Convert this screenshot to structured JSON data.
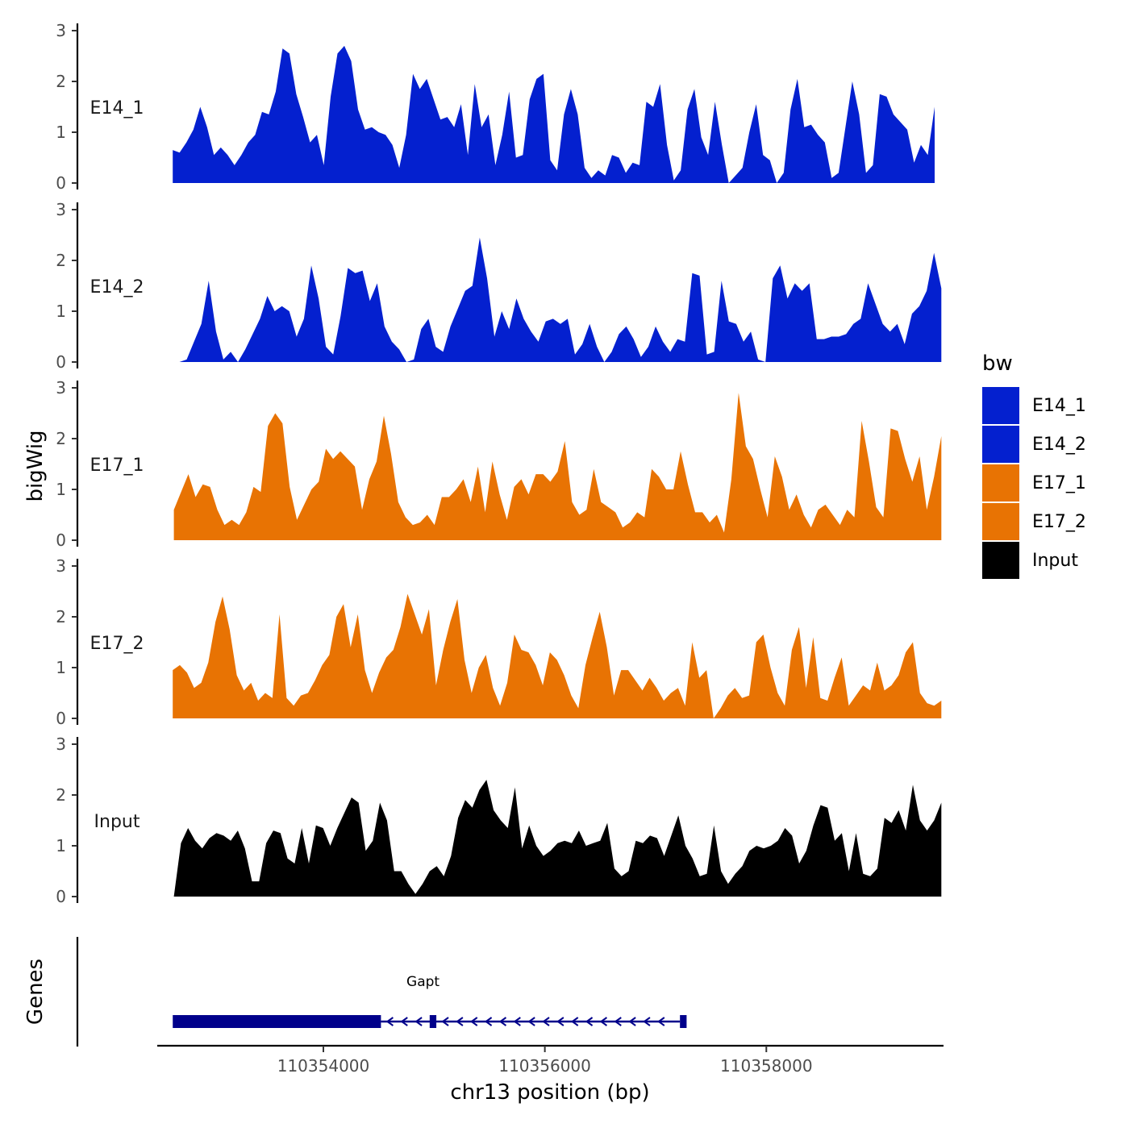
{
  "chart_data": {
    "type": "area",
    "ylabel": "bigWig",
    "xlabel": "chr13 position (bp)",
    "genes_label": "Genes",
    "x_range": [
      110352500,
      110359600
    ],
    "ylim": [
      0,
      3
    ],
    "yticks": [
      0,
      1,
      2,
      3
    ],
    "xticks": [
      110354000,
      110356000,
      110358000
    ],
    "xtick_labels": [
      "110354000",
      "110356000",
      "110358000"
    ],
    "legend": {
      "title": "bw",
      "position": "right",
      "entries": [
        {
          "label": "E14_1",
          "color": "#0420CF"
        },
        {
          "label": "E14_2",
          "color": "#0420CF"
        },
        {
          "label": "E17_1",
          "color": "#E87303"
        },
        {
          "label": "E17_2",
          "color": "#E87303"
        },
        {
          "label": "Input",
          "color": "#000000"
        }
      ]
    },
    "tracks": [
      {
        "name": "E14_1",
        "label": "E14_1",
        "color": "#0420CF",
        "x_start": 110352640,
        "x_end": 110359520,
        "values": [
          0.65,
          0.6,
          0.8,
          1.05,
          1.5,
          1.1,
          0.55,
          0.7,
          0.55,
          0.35,
          0.55,
          0.8,
          0.95,
          1.4,
          1.35,
          1.8,
          2.65,
          2.55,
          1.75,
          1.3,
          0.8,
          0.95,
          0.35,
          1.7,
          2.55,
          2.7,
          2.4,
          1.45,
          1.05,
          1.1,
          1.0,
          0.95,
          0.75,
          0.3,
          0.95,
          2.15,
          1.85,
          2.05,
          1.65,
          1.25,
          1.3,
          1.1,
          1.55,
          0.55,
          1.95,
          1.1,
          1.35,
          0.35,
          0.95,
          1.8,
          0.5,
          0.55,
          1.65,
          2.05,
          2.15,
          0.45,
          0.25,
          1.35,
          1.85,
          1.35,
          0.3,
          0.1,
          0.25,
          0.15,
          0.55,
          0.5,
          0.2,
          0.4,
          0.35,
          1.6,
          1.5,
          1.95,
          0.75,
          0.05,
          0.25,
          1.45,
          1.85,
          0.9,
          0.55,
          1.6,
          0.75,
          0.0,
          0.15,
          0.3,
          1.0,
          1.55,
          0.55,
          0.45,
          0.0,
          0.2,
          1.45,
          2.05,
          1.1,
          1.15,
          0.95,
          0.8,
          0.1,
          0.2,
          1.1,
          2.0,
          1.35,
          0.2,
          0.35,
          1.75,
          1.7,
          1.35,
          1.2,
          1.05,
          0.4,
          0.75,
          0.55,
          1.5
        ]
      },
      {
        "name": "E14_2",
        "label": "E14_2",
        "color": "#0420CF",
        "x_start": 110352700,
        "x_end": 110359580,
        "values": [
          0.0,
          0.05,
          0.4,
          0.75,
          1.6,
          0.6,
          0.05,
          0.2,
          0.0,
          0.25,
          0.55,
          0.85,
          1.3,
          1.0,
          1.1,
          1.0,
          0.5,
          0.85,
          1.9,
          1.25,
          0.3,
          0.15,
          0.9,
          1.85,
          1.75,
          1.8,
          1.2,
          1.55,
          0.7,
          0.4,
          0.25,
          0.0,
          0.05,
          0.65,
          0.85,
          0.3,
          0.2,
          0.7,
          1.05,
          1.4,
          1.5,
          2.45,
          1.65,
          0.5,
          1.0,
          0.65,
          1.25,
          0.85,
          0.6,
          0.4,
          0.8,
          0.85,
          0.75,
          0.85,
          0.15,
          0.35,
          0.75,
          0.3,
          0.0,
          0.2,
          0.55,
          0.7,
          0.45,
          0.1,
          0.3,
          0.7,
          0.4,
          0.2,
          0.45,
          0.4,
          1.75,
          1.7,
          0.15,
          0.2,
          1.6,
          0.8,
          0.75,
          0.4,
          0.6,
          0.05,
          0.0,
          1.65,
          1.9,
          1.25,
          1.55,
          1.4,
          1.55,
          0.45,
          0.45,
          0.5,
          0.5,
          0.55,
          0.75,
          0.85,
          1.55,
          1.15,
          0.75,
          0.6,
          0.75,
          0.35,
          0.95,
          1.1,
          1.4,
          2.15,
          1.45
        ]
      },
      {
        "name": "E17_1",
        "label": "E17_1",
        "color": "#E87303",
        "x_start": 110352650,
        "x_end": 110359580,
        "values": [
          0.6,
          0.95,
          1.3,
          0.85,
          1.1,
          1.05,
          0.6,
          0.3,
          0.4,
          0.3,
          0.55,
          1.05,
          0.95,
          2.25,
          2.5,
          2.3,
          1.05,
          0.4,
          0.7,
          1.0,
          1.15,
          1.8,
          1.6,
          1.75,
          1.6,
          1.45,
          0.6,
          1.2,
          1.55,
          2.45,
          1.7,
          0.75,
          0.45,
          0.3,
          0.35,
          0.5,
          0.3,
          0.85,
          0.85,
          1.0,
          1.2,
          0.75,
          1.45,
          0.55,
          1.55,
          0.9,
          0.4,
          1.05,
          1.2,
          0.9,
          1.3,
          1.3,
          1.15,
          1.35,
          1.95,
          0.75,
          0.5,
          0.6,
          1.4,
          0.75,
          0.65,
          0.55,
          0.25,
          0.35,
          0.55,
          0.45,
          1.4,
          1.25,
          1.0,
          1.0,
          1.75,
          1.1,
          0.55,
          0.55,
          0.35,
          0.5,
          0.15,
          1.2,
          2.9,
          1.85,
          1.6,
          1.0,
          0.45,
          1.65,
          1.25,
          0.6,
          0.9,
          0.5,
          0.25,
          0.6,
          0.7,
          0.5,
          0.3,
          0.6,
          0.45,
          2.35,
          1.55,
          0.65,
          0.45,
          2.2,
          2.15,
          1.6,
          1.15,
          1.65,
          0.6,
          1.25,
          2.05
        ]
      },
      {
        "name": "E17_2",
        "label": "E17_2",
        "color": "#E87303",
        "x_start": 110352640,
        "x_end": 110359580,
        "values": [
          0.95,
          1.05,
          0.9,
          0.6,
          0.7,
          1.1,
          1.9,
          2.4,
          1.75,
          0.85,
          0.55,
          0.7,
          0.35,
          0.5,
          0.4,
          2.05,
          0.4,
          0.25,
          0.45,
          0.5,
          0.75,
          1.05,
          1.25,
          2.0,
          2.25,
          1.4,
          2.05,
          0.95,
          0.5,
          0.9,
          1.2,
          1.35,
          1.8,
          2.45,
          2.05,
          1.65,
          2.15,
          0.65,
          1.35,
          1.9,
          2.35,
          1.15,
          0.5,
          1.0,
          1.25,
          0.6,
          0.25,
          0.7,
          1.65,
          1.35,
          1.3,
          1.05,
          0.65,
          1.3,
          1.15,
          0.85,
          0.45,
          0.2,
          1.05,
          1.6,
          2.1,
          1.4,
          0.45,
          0.95,
          0.95,
          0.75,
          0.55,
          0.8,
          0.6,
          0.35,
          0.5,
          0.6,
          0.25,
          1.5,
          0.8,
          0.95,
          0.0,
          0.2,
          0.45,
          0.6,
          0.4,
          0.45,
          1.5,
          1.65,
          1.0,
          0.5,
          0.25,
          1.35,
          1.8,
          0.6,
          1.6,
          0.4,
          0.35,
          0.8,
          1.2,
          0.25,
          0.45,
          0.65,
          0.55,
          1.1,
          0.55,
          0.65,
          0.85,
          1.3,
          1.5,
          0.5,
          0.3,
          0.25,
          0.35
        ]
      },
      {
        "name": "Input",
        "label": "Input",
        "color": "#000000",
        "x_start": 110352650,
        "x_end": 110359580,
        "values": [
          0.0,
          1.05,
          1.35,
          1.1,
          0.95,
          1.15,
          1.25,
          1.2,
          1.1,
          1.3,
          0.95,
          0.3,
          0.3,
          1.05,
          1.3,
          1.25,
          0.75,
          0.65,
          1.35,
          0.65,
          1.4,
          1.35,
          1.0,
          1.35,
          1.65,
          1.95,
          1.85,
          0.9,
          1.1,
          1.85,
          1.5,
          0.5,
          0.5,
          0.25,
          0.05,
          0.25,
          0.5,
          0.6,
          0.4,
          0.8,
          1.55,
          1.9,
          1.75,
          2.1,
          2.3,
          1.7,
          1.5,
          1.35,
          2.15,
          0.95,
          1.4,
          1.0,
          0.8,
          0.9,
          1.05,
          1.1,
          1.05,
          1.3,
          1.0,
          1.05,
          1.1,
          1.45,
          0.55,
          0.4,
          0.5,
          1.1,
          1.05,
          1.2,
          1.15,
          0.8,
          1.2,
          1.6,
          1.0,
          0.75,
          0.4,
          0.45,
          1.4,
          0.5,
          0.25,
          0.45,
          0.6,
          0.9,
          1.0,
          0.95,
          1.0,
          1.1,
          1.35,
          1.2,
          0.65,
          0.9,
          1.4,
          1.8,
          1.75,
          1.1,
          1.25,
          0.5,
          1.25,
          0.45,
          0.4,
          0.55,
          1.55,
          1.45,
          1.7,
          1.3,
          2.2,
          1.5,
          1.3,
          1.5,
          1.85
        ]
      }
    ],
    "gene_track": {
      "name": "Gapt",
      "color": "#00008B",
      "exons": [
        [
          110352640,
          110354520
        ],
        [
          110354960,
          110355020
        ],
        [
          110357220,
          110357280
        ]
      ],
      "intron": [
        110354520,
        110357220
      ],
      "strand": "-",
      "arrow_positions": [
        110354600,
        110354730,
        110354860,
        110355100,
        110355230,
        110355360,
        110355490,
        110355620,
        110355750,
        110355880,
        110356010,
        110356140,
        110356270,
        110356400,
        110356530,
        110356660,
        110356790,
        110356920,
        110357050
      ]
    }
  }
}
